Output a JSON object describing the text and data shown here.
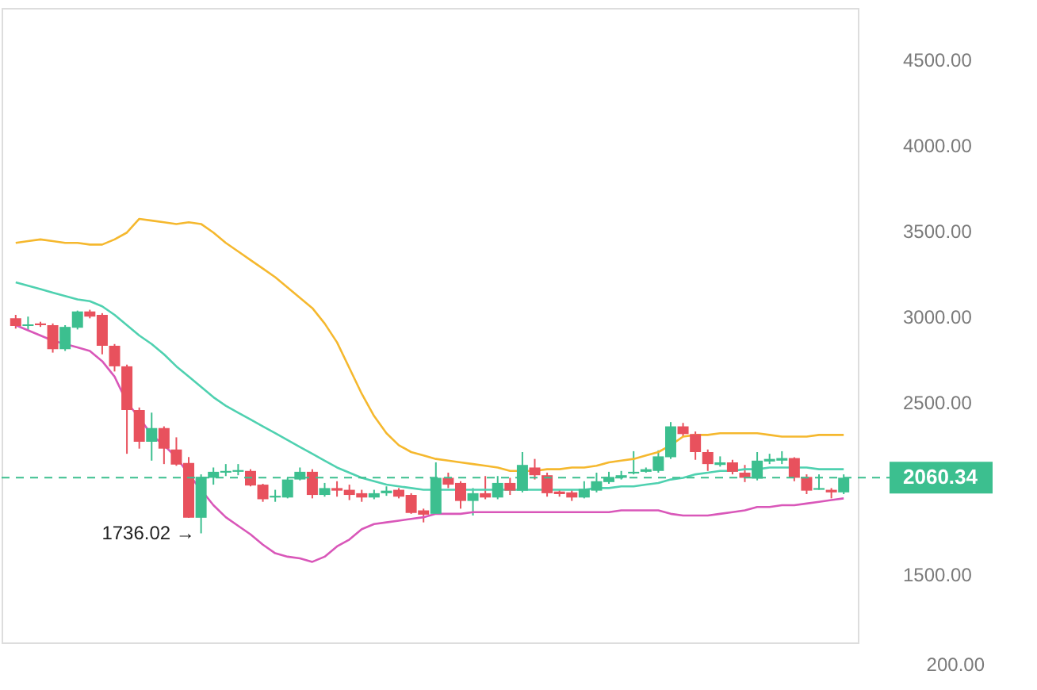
{
  "chart_data": {
    "type": "candlestick",
    "categories": [
      null,
      null,
      null,
      null,
      null,
      null,
      null,
      null,
      null,
      null,
      null,
      null,
      null,
      null,
      null,
      null,
      null,
      null,
      null,
      null,
      null,
      null,
      null,
      null,
      null,
      null,
      null,
      null,
      null,
      null,
      null,
      null,
      null,
      null,
      null,
      null,
      null,
      null,
      null,
      null,
      null,
      null,
      null,
      null,
      null,
      null,
      null,
      null,
      null,
      null,
      null,
      null,
      null,
      null,
      null,
      null,
      null,
      null,
      null,
      null,
      null,
      null,
      null,
      null,
      null,
      null,
      null,
      null
    ],
    "ohlc": [
      [
        2990,
        3010,
        2930,
        2945
      ],
      [
        2945,
        3000,
        2920,
        2955
      ],
      [
        2960,
        2970,
        2940,
        2950
      ],
      [
        2950,
        2960,
        2790,
        2810
      ],
      [
        2810,
        2950,
        2800,
        2940
      ],
      [
        2935,
        3035,
        2925,
        3030
      ],
      [
        3030,
        3040,
        2990,
        3000
      ],
      [
        3010,
        3020,
        2780,
        2830
      ],
      [
        2830,
        2840,
        2680,
        2710
      ],
      [
        2710,
        2720,
        2200,
        2455
      ],
      [
        2455,
        2470,
        2230,
        2270
      ],
      [
        2270,
        2440,
        2160,
        2350
      ],
      [
        2350,
        2360,
        2140,
        2230
      ],
      [
        2225,
        2296,
        2130,
        2137
      ],
      [
        2146,
        2181,
        1827,
        1827
      ],
      [
        1827,
        2080,
        1736.02,
        2066
      ],
      [
        2060,
        2120,
        2020,
        2095
      ],
      [
        2090,
        2140,
        2070,
        2100
      ],
      [
        2095,
        2140,
        2075,
        2105
      ],
      [
        2100,
        2110,
        2010,
        2015
      ],
      [
        2020,
        2025,
        1920,
        1935
      ],
      [
        1945,
        1990,
        1920,
        1955
      ],
      [
        1945,
        2060,
        1940,
        2050
      ],
      [
        2050,
        2120,
        2045,
        2095
      ],
      [
        2095,
        2110,
        1940,
        1960
      ],
      [
        1960,
        2030,
        1950,
        2000
      ],
      [
        2000,
        2040,
        1950,
        1985
      ],
      [
        1990,
        2020,
        1930,
        1960
      ],
      [
        1970,
        1990,
        1920,
        1945
      ],
      [
        1945,
        1990,
        1935,
        1970
      ],
      [
        1970,
        2010,
        1955,
        1985
      ],
      [
        1990,
        2000,
        1940,
        1950
      ],
      [
        1960,
        1970,
        1850,
        1855
      ],
      [
        1870,
        1880,
        1800,
        1845
      ],
      [
        1850,
        2150,
        1845,
        2060
      ],
      [
        2060,
        2090,
        2000,
        2020
      ],
      [
        2030,
        2040,
        1880,
        1925
      ],
      [
        1925,
        2000,
        1840,
        1970
      ],
      [
        1970,
        2070,
        1935,
        1945
      ],
      [
        1945,
        2070,
        1935,
        2030
      ],
      [
        2030,
        2060,
        1960,
        1985
      ],
      [
        1985,
        2210,
        1975,
        2135
      ],
      [
        2120,
        2170,
        2050,
        2075
      ],
      [
        2075,
        2090,
        1950,
        1970
      ],
      [
        1980,
        1990,
        1950,
        1965
      ],
      [
        1975,
        1990,
        1925,
        1945
      ],
      [
        1945,
        2040,
        1940,
        1995
      ],
      [
        1985,
        2090,
        1975,
        2040
      ],
      [
        2035,
        2095,
        2025,
        2065
      ],
      [
        2060,
        2100,
        2050,
        2075
      ],
      [
        2085,
        2215,
        2080,
        2095
      ],
      [
        2095,
        2120,
        2090,
        2110
      ],
      [
        2100,
        2220,
        2090,
        2185
      ],
      [
        2180,
        2385,
        2170,
        2360
      ],
      [
        2360,
        2380,
        2300,
        2315
      ],
      [
        2315,
        2330,
        2165,
        2210
      ],
      [
        2210,
        2225,
        2100,
        2140
      ],
      [
        2135,
        2185,
        2125,
        2150
      ],
      [
        2150,
        2165,
        2080,
        2095
      ],
      [
        2090,
        2135,
        2035,
        2060
      ],
      [
        2055,
        2210,
        2045,
        2160
      ],
      [
        2155,
        2200,
        2140,
        2170
      ],
      [
        2160,
        2215,
        2140,
        2175
      ],
      [
        2175,
        2180,
        2040,
        2060
      ],
      [
        2065,
        2080,
        1965,
        1985
      ],
      [
        1990,
        2080,
        1990,
        2000
      ],
      [
        1990,
        2000,
        1940,
        1975
      ],
      [
        1975,
        2080,
        1965,
        2060.34
      ]
    ],
    "colors": [
      "#e8515d",
      "#3cbf8f",
      "#e8515d",
      "#e8515d",
      "#3cbf8f",
      "#3cbf8f",
      "#e8515d",
      "#e8515d",
      "#e8515d",
      "#e8515d",
      "#e8515d",
      "#3cbf8f",
      "#e8515d",
      "#e8515d",
      "#e8515d",
      "#3cbf8f",
      "#3cbf8f",
      "#3cbf8f",
      "#3cbf8f",
      "#e8515d",
      "#e8515d",
      "#3cbf8f",
      "#3cbf8f",
      "#3cbf8f",
      "#e8515d",
      "#3cbf8f",
      "#e8515d",
      "#e8515d",
      "#e8515d",
      "#3cbf8f",
      "#3cbf8f",
      "#e8515d",
      "#e8515d",
      "#e8515d",
      "#3cbf8f",
      "#e8515d",
      "#e8515d",
      "#3cbf8f",
      "#e8515d",
      "#3cbf8f",
      "#e8515d",
      "#3cbf8f",
      "#e8515d",
      "#e8515d",
      "#e8515d",
      "#e8515d",
      "#3cbf8f",
      "#3cbf8f",
      "#3cbf8f",
      "#3cbf8f",
      "#3cbf8f",
      "#3cbf8f",
      "#3cbf8f",
      "#3cbf8f",
      "#e8515d",
      "#e8515d",
      "#e8515d",
      "#3cbf8f",
      "#e8515d",
      "#e8515d",
      "#3cbf8f",
      "#3cbf8f",
      "#3cbf8f",
      "#e8515d",
      "#e8515d",
      "#3cbf8f",
      "#e8515d",
      "#3cbf8f"
    ],
    "series": [
      {
        "type": "line",
        "color": "#f5b82e",
        "values": [
          3430,
          3440,
          3450,
          3440,
          3430,
          3430,
          3420,
          3420,
          3450,
          3490,
          3570,
          3560,
          3550,
          3540,
          3550,
          3540,
          3490,
          3430,
          3380,
          3330,
          3280,
          3230,
          3170,
          3110,
          3050,
          2960,
          2850,
          2700,
          2550,
          2420,
          2320,
          2250,
          2210,
          2190,
          2170,
          2160,
          2150,
          2140,
          2130,
          2120,
          2100,
          2100,
          2100,
          2110,
          2110,
          2120,
          2120,
          2130,
          2150,
          2160,
          2170,
          2190,
          2210,
          2250,
          2300,
          2310,
          2310,
          2320,
          2320,
          2320,
          2320,
          2310,
          2300,
          2300,
          2300,
          2310,
          2310,
          2310
        ]
      },
      {
        "type": "line",
        "color": "#4fd1b0",
        "values": [
          3200,
          3180,
          3160,
          3140,
          3120,
          3100,
          3090,
          3060,
          3010,
          2950,
          2890,
          2840,
          2780,
          2710,
          2650,
          2590,
          2530,
          2480,
          2440,
          2400,
          2360,
          2320,
          2280,
          2240,
          2200,
          2160,
          2120,
          2090,
          2060,
          2040,
          2020,
          2010,
          2000,
          1990,
          1990,
          1990,
          1990,
          1990,
          1990,
          1990,
          1990,
          1990,
          1990,
          1990,
          1990,
          1990,
          1990,
          2000,
          2000,
          2010,
          2010,
          2020,
          2030,
          2050,
          2060,
          2080,
          2090,
          2100,
          2100,
          2110,
          2110,
          2120,
          2120,
          2120,
          2120,
          2110,
          2110,
          2110
        ]
      },
      {
        "type": "line",
        "color": "#d957b9",
        "values": [
          2950,
          2920,
          2890,
          2860,
          2840,
          2820,
          2800,
          2740,
          2650,
          2500,
          2410,
          2310,
          2250,
          2180,
          2080,
          1990,
          1900,
          1830,
          1780,
          1730,
          1670,
          1620,
          1600,
          1590,
          1570,
          1600,
          1660,
          1700,
          1760,
          1790,
          1800,
          1810,
          1820,
          1830,
          1850,
          1850,
          1850,
          1860,
          1860,
          1860,
          1860,
          1860,
          1860,
          1860,
          1860,
          1860,
          1860,
          1860,
          1860,
          1870,
          1870,
          1870,
          1870,
          1850,
          1840,
          1840,
          1840,
          1850,
          1860,
          1870,
          1890,
          1890,
          1900,
          1900,
          1910,
          1920,
          1930,
          1940
        ]
      }
    ],
    "ylim": [
      1100,
      4800
    ],
    "yticks": [
      {
        "value": 1500,
        "label": "1500.00"
      },
      {
        "value": 2500,
        "label": "2500.00"
      },
      {
        "value": 3000,
        "label": "3000.00"
      },
      {
        "value": 3500,
        "label": "3500.00"
      },
      {
        "value": 4000,
        "label": "4000.00"
      },
      {
        "value": 4500,
        "label": "4500.00"
      }
    ],
    "ref_lines": [
      {
        "axis": "y",
        "value": 2060.34,
        "label": "2060.34",
        "color": "#3cbf8f",
        "line_style": "dashed"
      }
    ],
    "annotations": [
      "1736.02 →",
      "200.00"
    ],
    "grid": false
  }
}
